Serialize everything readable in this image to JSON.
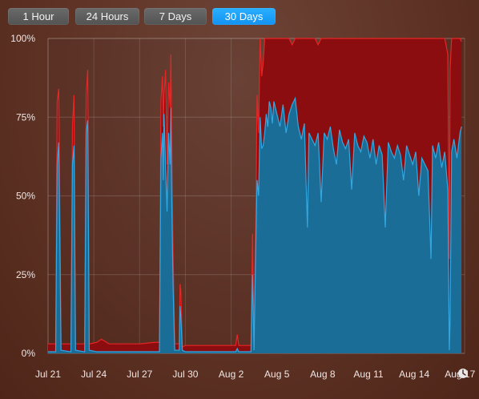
{
  "toolbar": {
    "tabs": [
      {
        "label": "1 Hour",
        "selected": false
      },
      {
        "label": "24 Hours",
        "selected": false
      },
      {
        "label": "7 Days",
        "selected": false
      },
      {
        "label": "30 Days",
        "selected": true
      }
    ]
  },
  "chart_data": {
    "type": "area",
    "series": [
      {
        "color": "#1a6d96",
        "line_color": "#35a7e0"
      },
      {
        "color": "#8b0d0f",
        "line_color": "#e82526"
      }
    ],
    "ylim": [
      0,
      100
    ],
    "yticks": [
      "100%",
      "75%",
      "50%",
      "25%",
      "0%"
    ],
    "xticks": [
      "Jul 21",
      "Jul 24",
      "Jul 27",
      "Jul 30",
      "Aug 2",
      "Aug 5",
      "Aug 8",
      "Aug 11",
      "Aug 14",
      "Aug 17"
    ],
    "x_unit": "days",
    "grid": true,
    "clock_icon": "clock-icon",
    "points": [
      [
        0.0,
        0.5,
        3.0
      ],
      [
        0.5,
        0.5,
        3.0
      ],
      [
        0.6,
        60,
        80
      ],
      [
        0.7,
        67,
        84
      ],
      [
        0.85,
        1,
        3
      ],
      [
        1.5,
        0.5,
        3.0
      ],
      [
        1.6,
        60,
        72
      ],
      [
        1.7,
        66,
        82
      ],
      [
        1.8,
        1,
        3
      ],
      [
        2.4,
        0.5,
        3.0
      ],
      [
        2.5,
        70,
        82
      ],
      [
        2.6,
        74,
        90
      ],
      [
        2.7,
        1,
        3
      ],
      [
        3.2,
        0.5,
        3.5
      ],
      [
        3.5,
        0.5,
        4.5
      ],
      [
        4.0,
        0.5,
        3.0
      ],
      [
        5.0,
        0.5,
        3.0
      ],
      [
        6.0,
        0.5,
        3.0
      ],
      [
        7.0,
        0.5,
        3.5
      ],
      [
        7.3,
        0.5,
        3.5
      ],
      [
        7.4,
        62,
        80
      ],
      [
        7.5,
        70,
        88
      ],
      [
        7.55,
        55,
        72
      ],
      [
        7.6,
        76,
        82
      ],
      [
        7.7,
        60,
        90
      ],
      [
        7.8,
        45,
        60
      ],
      [
        7.9,
        70,
        86
      ],
      [
        8.0,
        60,
        78
      ],
      [
        8.05,
        78,
        95
      ],
      [
        8.1,
        50,
        70
      ],
      [
        8.2,
        20,
        30
      ],
      [
        8.3,
        1,
        3
      ],
      [
        8.6,
        1,
        3
      ],
      [
        8.65,
        15,
        22
      ],
      [
        8.7,
        12,
        20
      ],
      [
        8.8,
        1,
        2
      ],
      [
        9.0,
        0.5,
        2.5
      ],
      [
        10.0,
        0.5,
        2.5
      ],
      [
        11.0,
        0.5,
        2.5
      ],
      [
        12.3,
        0.5,
        2.5
      ],
      [
        12.4,
        1.5,
        6
      ],
      [
        12.5,
        0.5,
        2.5
      ],
      [
        13.3,
        0.5,
        2.5
      ],
      [
        13.4,
        25,
        38
      ],
      [
        13.5,
        1,
        3
      ],
      [
        13.6,
        30,
        36
      ],
      [
        13.7,
        55,
        82
      ],
      [
        13.8,
        50,
        70
      ],
      [
        13.9,
        75,
        100
      ],
      [
        14.0,
        65,
        88
      ],
      [
        14.1,
        66,
        92
      ],
      [
        14.2,
        70,
        100
      ],
      [
        14.3,
        76,
        100
      ],
      [
        14.4,
        72,
        100
      ],
      [
        14.5,
        80,
        100
      ],
      [
        14.6,
        78,
        100
      ],
      [
        14.7,
        73,
        100
      ],
      [
        14.8,
        80,
        100
      ],
      [
        15.0,
        76,
        100
      ],
      [
        15.2,
        72,
        100
      ],
      [
        15.4,
        79,
        100
      ],
      [
        15.6,
        70,
        100
      ],
      [
        15.8,
        76,
        100
      ],
      [
        16.0,
        79,
        98
      ],
      [
        16.2,
        81,
        100
      ],
      [
        16.4,
        72,
        100
      ],
      [
        16.6,
        68,
        100
      ],
      [
        16.8,
        73,
        100
      ],
      [
        17.0,
        40,
        100
      ],
      [
        17.1,
        70,
        100
      ],
      [
        17.3,
        68,
        100
      ],
      [
        17.5,
        66,
        100
      ],
      [
        17.7,
        70,
        98
      ],
      [
        17.9,
        48,
        100
      ],
      [
        18.1,
        70,
        100
      ],
      [
        18.3,
        68,
        100
      ],
      [
        18.5,
        72,
        100
      ],
      [
        18.7,
        65,
        100
      ],
      [
        18.9,
        60,
        100
      ],
      [
        19.1,
        71,
        100
      ],
      [
        19.3,
        67,
        100
      ],
      [
        19.5,
        65,
        100
      ],
      [
        19.7,
        68,
        100
      ],
      [
        19.9,
        52,
        100
      ],
      [
        20.1,
        70,
        100
      ],
      [
        20.3,
        66,
        100
      ],
      [
        20.5,
        64,
        100
      ],
      [
        20.7,
        69,
        100
      ],
      [
        20.9,
        67,
        100
      ],
      [
        21.1,
        62,
        100
      ],
      [
        21.3,
        68,
        100
      ],
      [
        21.5,
        60,
        100
      ],
      [
        21.7,
        66,
        100
      ],
      [
        21.9,
        63,
        100
      ],
      [
        22.1,
        40,
        100
      ],
      [
        22.3,
        67,
        100
      ],
      [
        22.5,
        64,
        100
      ],
      [
        22.7,
        62,
        100
      ],
      [
        22.9,
        66,
        100
      ],
      [
        23.1,
        63,
        100
      ],
      [
        23.3,
        55,
        100
      ],
      [
        23.5,
        66,
        100
      ],
      [
        23.7,
        63,
        100
      ],
      [
        23.9,
        60,
        100
      ],
      [
        24.1,
        64,
        100
      ],
      [
        24.3,
        50,
        100
      ],
      [
        24.5,
        62,
        100
      ],
      [
        24.7,
        60,
        100
      ],
      [
        24.9,
        58,
        100
      ],
      [
        25.1,
        30,
        100
      ],
      [
        25.2,
        66,
        100
      ],
      [
        25.4,
        62,
        100
      ],
      [
        25.6,
        67,
        100
      ],
      [
        25.8,
        59,
        100
      ],
      [
        26.0,
        64,
        100
      ],
      [
        26.2,
        52,
        95
      ],
      [
        26.3,
        1,
        30
      ],
      [
        26.35,
        10,
        90
      ],
      [
        26.45,
        64,
        100
      ],
      [
        26.6,
        68,
        100
      ],
      [
        26.8,
        62,
        100
      ],
      [
        27.0,
        70,
        100
      ],
      [
        27.1,
        72,
        99
      ]
    ]
  }
}
